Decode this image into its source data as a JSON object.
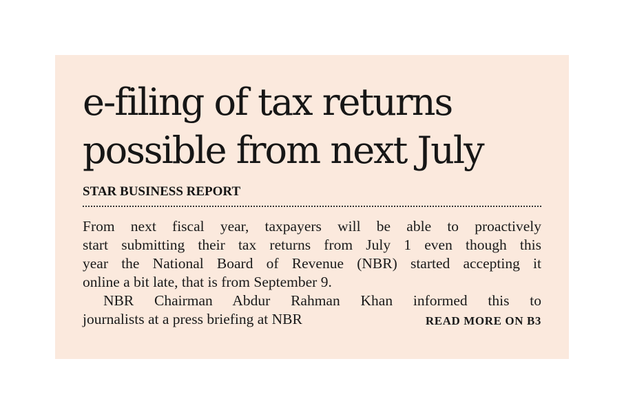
{
  "article": {
    "headline_line1": "e-filing of tax returns",
    "headline_line2": "possible from next July",
    "byline": "STAR BUSINESS REPORT",
    "paragraph1": [
      "From next fiscal year, taxpayers will be able to proactively",
      "start submitting their tax returns from July 1 even though this",
      "year the National Board of Revenue (NBR) started accepting it",
      "online a bit late, that is from September 9."
    ],
    "paragraph2": [
      "NBR Chairman Abdur Rahman Khan informed this to",
      "journalists at a press briefing at NBR"
    ],
    "read_more": "READ MORE ON B3"
  }
}
